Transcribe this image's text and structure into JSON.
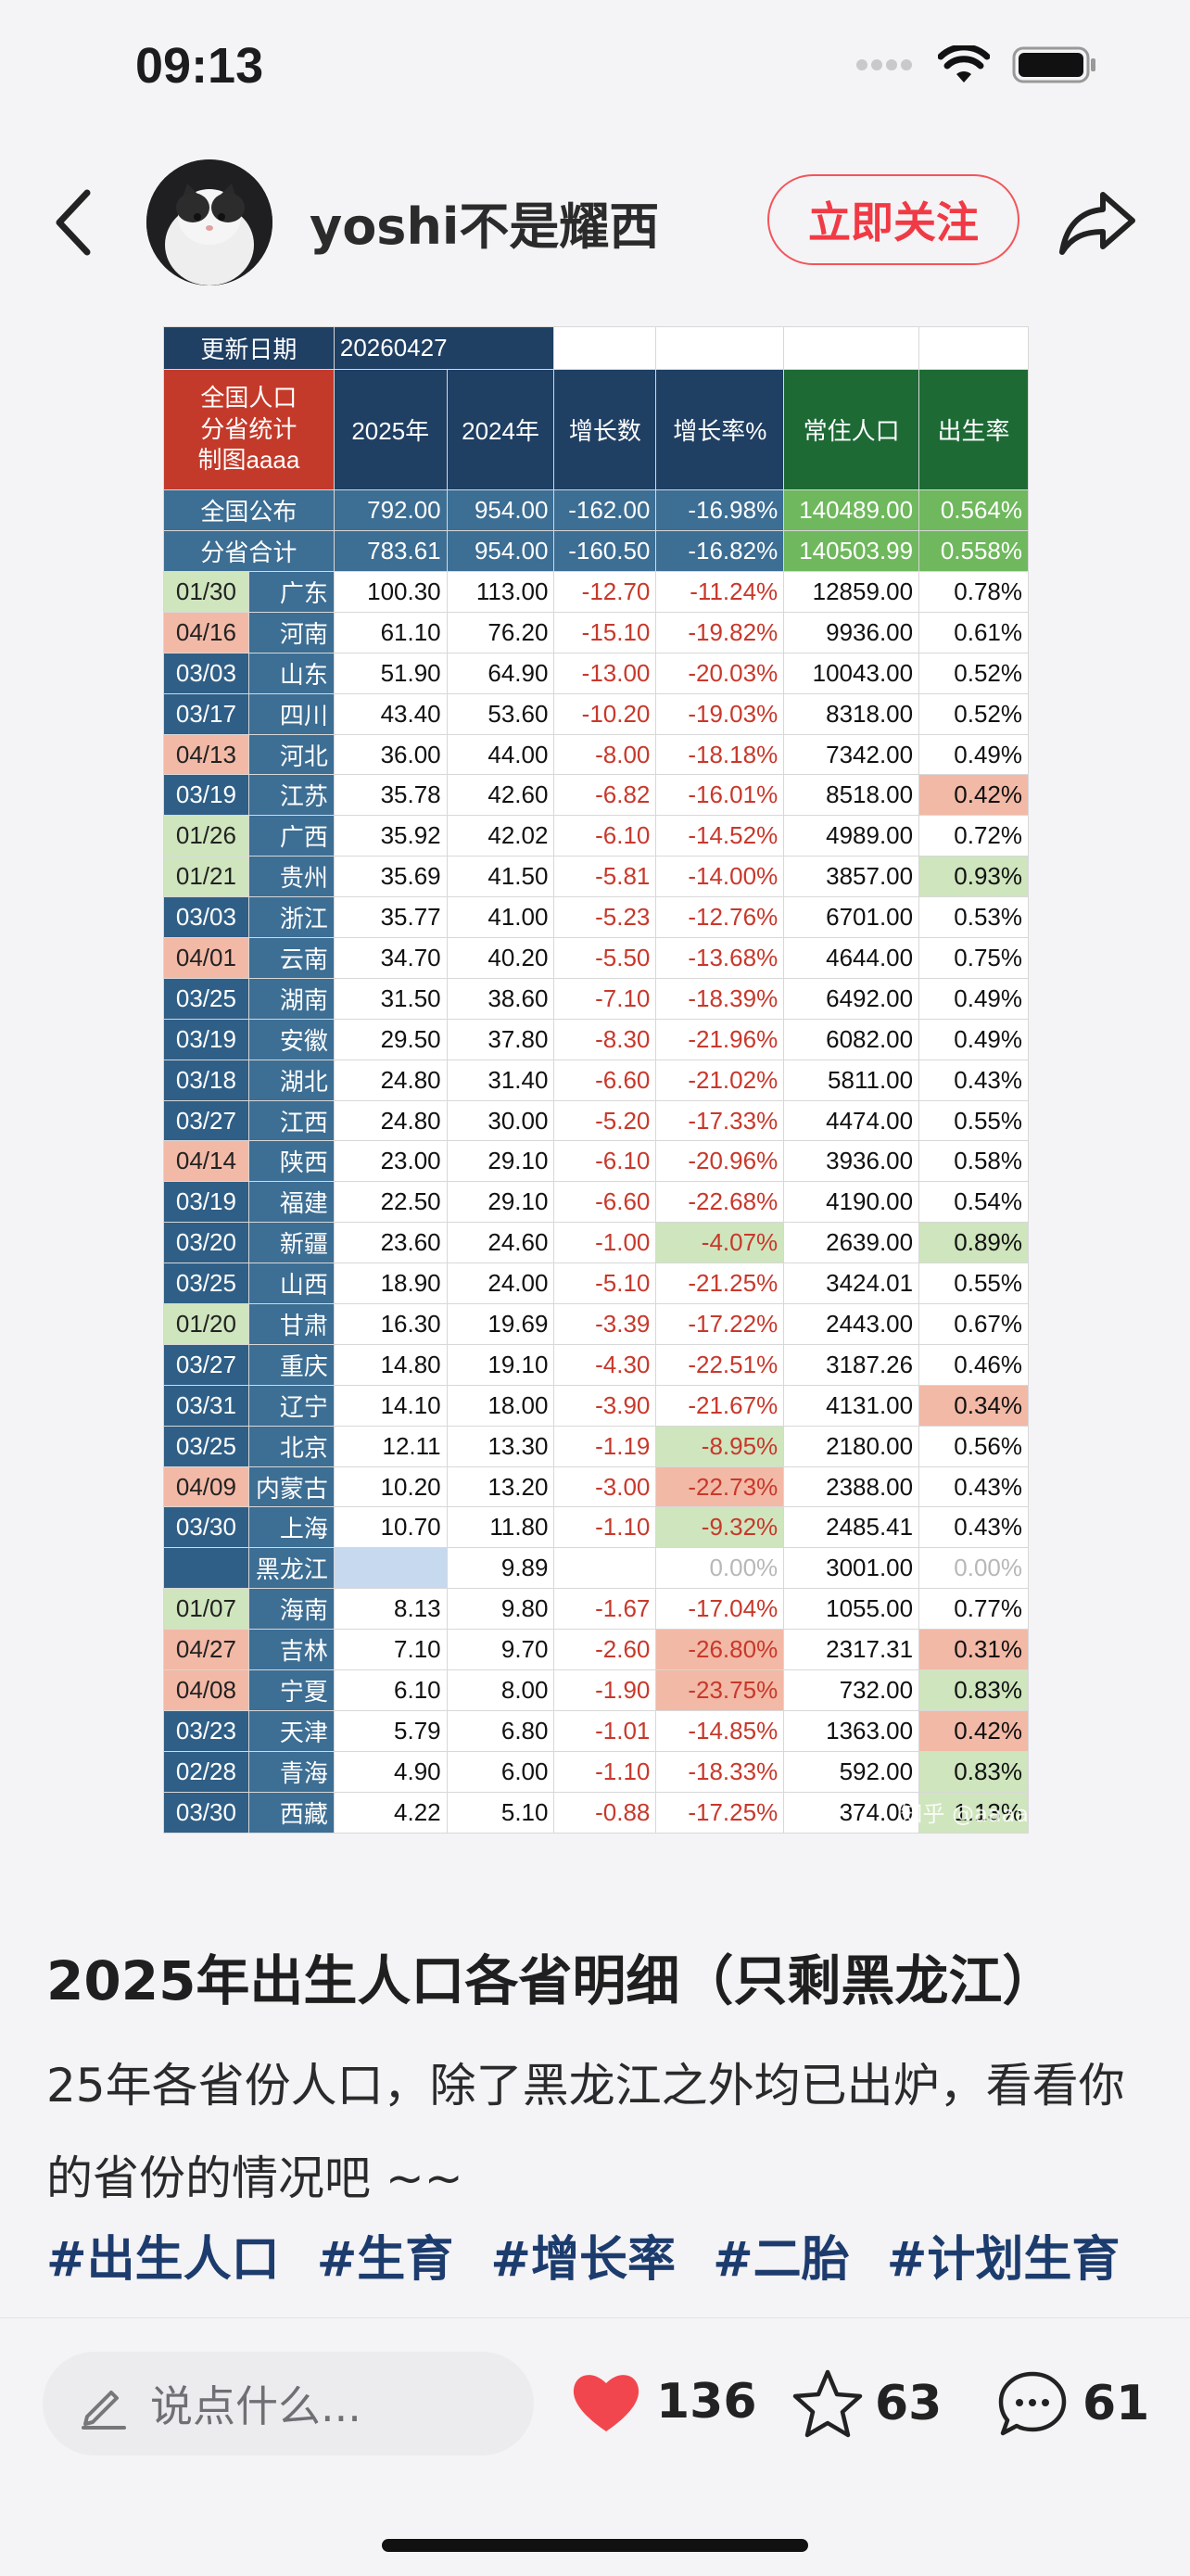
{
  "status": {
    "time": "09:13"
  },
  "header": {
    "username": "yoshi不是耀西",
    "follow_label": "立即关注"
  },
  "table": {
    "update_label": "更新日期",
    "update_value": "20260427",
    "corner_label": "全国人口\n分省统计\n制图aaaa",
    "columns": [
      "2025年",
      "2024年",
      "增长数",
      "增长率%",
      "常住人口",
      "出生率"
    ],
    "totals": [
      {
        "name": "全国公布",
        "v2025": "792.00",
        "v2024": "954.00",
        "diff": "-162.00",
        "rate": "-16.98%",
        "pop": "140489.00",
        "birth": "0.564%"
      },
      {
        "name": "分省合计",
        "v2025": "783.61",
        "v2024": "954.00",
        "diff": "-160.50",
        "rate": "-16.82%",
        "pop": "140503.99",
        "birth": "0.558%"
      }
    ],
    "rows": [
      {
        "date": "01/30",
        "dc": "gr",
        "prov": "广东",
        "v2025": "100.30",
        "v2024": "113.00",
        "diff": "-12.70",
        "rate": "-11.24%",
        "rc": "",
        "pop": "12859.00",
        "birth": "0.78%",
        "bc": ""
      },
      {
        "date": "04/16",
        "dc": "pk",
        "prov": "河南",
        "v2025": "61.10",
        "v2024": "76.20",
        "diff": "-15.10",
        "rate": "-19.82%",
        "rc": "",
        "pop": "9936.00",
        "birth": "0.61%",
        "bc": ""
      },
      {
        "date": "03/03",
        "dc": "",
        "prov": "山东",
        "v2025": "51.90",
        "v2024": "64.90",
        "diff": "-13.00",
        "rate": "-20.03%",
        "rc": "",
        "pop": "10043.00",
        "birth": "0.52%",
        "bc": ""
      },
      {
        "date": "03/17",
        "dc": "",
        "prov": "四川",
        "v2025": "43.40",
        "v2024": "53.60",
        "diff": "-10.20",
        "rate": "-19.03%",
        "rc": "",
        "pop": "8318.00",
        "birth": "0.52%",
        "bc": ""
      },
      {
        "date": "04/13",
        "dc": "pk",
        "prov": "河北",
        "v2025": "36.00",
        "v2024": "44.00",
        "diff": "-8.00",
        "rate": "-18.18%",
        "rc": "",
        "pop": "7342.00",
        "birth": "0.49%",
        "bc": ""
      },
      {
        "date": "03/19",
        "dc": "",
        "prov": "江苏",
        "v2025": "35.78",
        "v2024": "42.60",
        "diff": "-6.82",
        "rate": "-16.01%",
        "rc": "",
        "pop": "8518.00",
        "birth": "0.42%",
        "bc": "pk"
      },
      {
        "date": "01/26",
        "dc": "gr",
        "prov": "广西",
        "v2025": "35.92",
        "v2024": "42.02",
        "diff": "-6.10",
        "rate": "-14.52%",
        "rc": "",
        "pop": "4989.00",
        "birth": "0.72%",
        "bc": ""
      },
      {
        "date": "01/21",
        "dc": "gr",
        "prov": "贵州",
        "v2025": "35.69",
        "v2024": "41.50",
        "diff": "-5.81",
        "rate": "-14.00%",
        "rc": "",
        "pop": "3857.00",
        "birth": "0.93%",
        "bc": "gr"
      },
      {
        "date": "03/03",
        "dc": "",
        "prov": "浙江",
        "v2025": "35.77",
        "v2024": "41.00",
        "diff": "-5.23",
        "rate": "-12.76%",
        "rc": "",
        "pop": "6701.00",
        "birth": "0.53%",
        "bc": ""
      },
      {
        "date": "04/01",
        "dc": "pk",
        "prov": "云南",
        "v2025": "34.70",
        "v2024": "40.20",
        "diff": "-5.50",
        "rate": "-13.68%",
        "rc": "",
        "pop": "4644.00",
        "birth": "0.75%",
        "bc": ""
      },
      {
        "date": "03/25",
        "dc": "",
        "prov": "湖南",
        "v2025": "31.50",
        "v2024": "38.60",
        "diff": "-7.10",
        "rate": "-18.39%",
        "rc": "",
        "pop": "6492.00",
        "birth": "0.49%",
        "bc": ""
      },
      {
        "date": "03/19",
        "dc": "",
        "prov": "安徽",
        "v2025": "29.50",
        "v2024": "37.80",
        "diff": "-8.30",
        "rate": "-21.96%",
        "rc": "",
        "pop": "6082.00",
        "birth": "0.49%",
        "bc": ""
      },
      {
        "date": "03/18",
        "dc": "",
        "prov": "湖北",
        "v2025": "24.80",
        "v2024": "31.40",
        "diff": "-6.60",
        "rate": "-21.02%",
        "rc": "",
        "pop": "5811.00",
        "birth": "0.43%",
        "bc": ""
      },
      {
        "date": "03/27",
        "dc": "",
        "prov": "江西",
        "v2025": "24.80",
        "v2024": "30.00",
        "diff": "-5.20",
        "rate": "-17.33%",
        "rc": "",
        "pop": "4474.00",
        "birth": "0.55%",
        "bc": ""
      },
      {
        "date": "04/14",
        "dc": "pk",
        "prov": "陕西",
        "v2025": "23.00",
        "v2024": "29.10",
        "diff": "-6.10",
        "rate": "-20.96%",
        "rc": "",
        "pop": "3936.00",
        "birth": "0.58%",
        "bc": ""
      },
      {
        "date": "03/19",
        "dc": "",
        "prov": "福建",
        "v2025": "22.50",
        "v2024": "29.10",
        "diff": "-6.60",
        "rate": "-22.68%",
        "rc": "",
        "pop": "4190.00",
        "birth": "0.54%",
        "bc": ""
      },
      {
        "date": "03/20",
        "dc": "",
        "prov": "新疆",
        "v2025": "23.60",
        "v2024": "24.60",
        "diff": "-1.00",
        "rate": "-4.07%",
        "rc": "gr",
        "pop": "2639.00",
        "birth": "0.89%",
        "bc": "gr"
      },
      {
        "date": "03/25",
        "dc": "",
        "prov": "山西",
        "v2025": "18.90",
        "v2024": "24.00",
        "diff": "-5.10",
        "rate": "-21.25%",
        "rc": "",
        "pop": "3424.01",
        "birth": "0.55%",
        "bc": ""
      },
      {
        "date": "01/20",
        "dc": "gr",
        "prov": "甘肃",
        "v2025": "16.30",
        "v2024": "19.69",
        "diff": "-3.39",
        "rate": "-17.22%",
        "rc": "",
        "pop": "2443.00",
        "birth": "0.67%",
        "bc": ""
      },
      {
        "date": "03/27",
        "dc": "",
        "prov": "重庆",
        "v2025": "14.80",
        "v2024": "19.10",
        "diff": "-4.30",
        "rate": "-22.51%",
        "rc": "",
        "pop": "3187.26",
        "birth": "0.46%",
        "bc": ""
      },
      {
        "date": "03/31",
        "dc": "",
        "prov": "辽宁",
        "v2025": "14.10",
        "v2024": "18.00",
        "diff": "-3.90",
        "rate": "-21.67%",
        "rc": "",
        "pop": "4131.00",
        "birth": "0.34%",
        "bc": "pk"
      },
      {
        "date": "03/25",
        "dc": "",
        "prov": "北京",
        "v2025": "12.11",
        "v2024": "13.30",
        "diff": "-1.19",
        "rate": "-8.95%",
        "rc": "gr",
        "pop": "2180.00",
        "birth": "0.56%",
        "bc": ""
      },
      {
        "date": "04/09",
        "dc": "pk",
        "prov": "内蒙古",
        "v2025": "10.20",
        "v2024": "13.20",
        "diff": "-3.00",
        "rate": "-22.73%",
        "rc": "pk",
        "pop": "2388.00",
        "birth": "0.43%",
        "bc": ""
      },
      {
        "date": "03/30",
        "dc": "",
        "prov": "上海",
        "v2025": "10.70",
        "v2024": "11.80",
        "diff": "-1.10",
        "rate": "-9.32%",
        "rc": "gr",
        "pop": "2485.41",
        "birth": "0.43%",
        "bc": ""
      },
      {
        "date": "",
        "dc": "",
        "prov": "黑龙江",
        "v2025": "",
        "v2024": "9.89",
        "diff": "",
        "rate": "0.00%",
        "rc": "gray",
        "pop": "3001.00",
        "birth": "0.00%",
        "bc": "gray",
        "empty2025": true
      },
      {
        "date": "01/07",
        "dc": "gr",
        "prov": "海南",
        "v2025": "8.13",
        "v2024": "9.80",
        "diff": "-1.67",
        "rate": "-17.04%",
        "rc": "",
        "pop": "1055.00",
        "birth": "0.77%",
        "bc": ""
      },
      {
        "date": "04/27",
        "dc": "pk",
        "prov": "吉林",
        "v2025": "7.10",
        "v2024": "9.70",
        "diff": "-2.60",
        "rate": "-26.80%",
        "rc": "pk",
        "pop": "2317.31",
        "birth": "0.31%",
        "bc": "pk"
      },
      {
        "date": "04/08",
        "dc": "pk",
        "prov": "宁夏",
        "v2025": "6.10",
        "v2024": "8.00",
        "diff": "-1.90",
        "rate": "-23.75%",
        "rc": "pk",
        "pop": "732.00",
        "birth": "0.83%",
        "bc": "gr"
      },
      {
        "date": "03/23",
        "dc": "",
        "prov": "天津",
        "v2025": "5.79",
        "v2024": "6.80",
        "diff": "-1.01",
        "rate": "-14.85%",
        "rc": "",
        "pop": "1363.00",
        "birth": "0.42%",
        "bc": "pk"
      },
      {
        "date": "02/28",
        "dc": "",
        "prov": "青海",
        "v2025": "4.90",
        "v2024": "6.00",
        "diff": "-1.10",
        "rate": "-18.33%",
        "rc": "",
        "pop": "592.00",
        "birth": "0.83%",
        "bc": "gr"
      },
      {
        "date": "03/30",
        "dc": "",
        "prov": "西藏",
        "v2025": "4.22",
        "v2024": "5.10",
        "diff": "-0.88",
        "rate": "-17.25%",
        "rc": "",
        "pop": "374.00",
        "birth": "1.13%",
        "bc": "gr"
      }
    ],
    "watermark": "知乎 @aaaa"
  },
  "post": {
    "title": "2025年出生人口各省明细（只剩黑龙江）",
    "body": "25年各省份人口，除了黑龙江之外均已出炉，看看你的省份的情况吧 ~~",
    "tags": [
      "#出生人口",
      "#生育",
      "#增长率",
      "#二胎",
      "#计划生育"
    ]
  },
  "bottom": {
    "comment_placeholder": "说点什么...",
    "likes": "136",
    "stars": "63",
    "comments": "61"
  },
  "colors": {
    "accent": "#f03a45",
    "tag": "#1d3c6e",
    "table_blue": "#2f5f86",
    "table_green": "#1d6a35",
    "table_red": "#c43a2a"
  }
}
